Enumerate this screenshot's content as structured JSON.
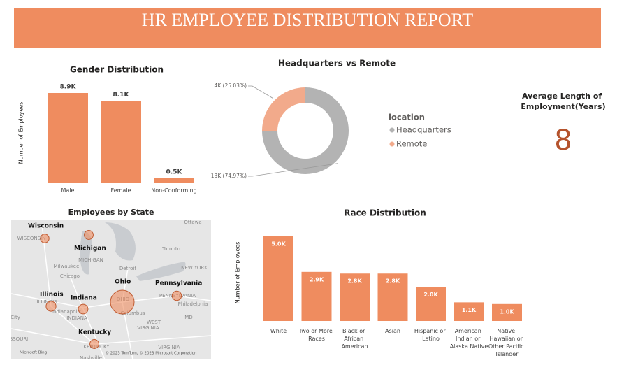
{
  "header": {
    "title": "HR EMPLOYEE DISTRIBUTION REPORT"
  },
  "kpi": {
    "title": "Average Length of Employment(Years)",
    "value": 8
  },
  "chart_data": [
    {
      "type": "bar",
      "title": "Gender Distribution",
      "ylabel": "Number of Employees",
      "categories": [
        "Male",
        "Female",
        "Non-Conforming"
      ],
      "values": [
        8900,
        8100,
        500
      ],
      "value_labels": [
        "8.9K",
        "8.1K",
        "0.5K"
      ],
      "color": "#ef8c5f"
    },
    {
      "type": "donut",
      "title": "Headquarters vs Remote",
      "legend_title": "location",
      "categories": [
        "Headquarters",
        "Remote"
      ],
      "values": [
        74.97,
        25.03
      ],
      "value_labels": [
        "13K (74.97%)",
        "4K (25.03%)"
      ],
      "colors": [
        "#b3b3b3",
        "#f2aa8b"
      ]
    },
    {
      "type": "map",
      "title": "Employees by State",
      "categories": [
        "Wisconsin",
        "Michigan",
        "Ohio",
        "Pennsylvania",
        "Illinois",
        "Indiana",
        "Kentucky"
      ],
      "values": [
        400,
        500,
        14000,
        600,
        800,
        700,
        500
      ],
      "color": "#ef8c5f",
      "basemap_labels": [
        "Ottawa",
        "WISCONSIN",
        "Toronto",
        "MICHIGAN",
        "Milwaukee",
        "Detroit",
        "NEW YORK",
        "Chicago",
        "ILLINOIS",
        "Indianapolis",
        "INDIANA",
        "OHIO",
        "Columbus",
        "PENNSYLVANIA",
        "Philadelphia",
        "WEST",
        "VIRGINIA",
        "MD",
        "City",
        "ISSOURI",
        "KENTUCKY",
        "VIRGINIA",
        "Nashville"
      ],
      "credits": [
        "Microsoft Bing",
        "© 2023 TomTom, © 2023 Microsoft Corporation"
      ]
    },
    {
      "type": "bar",
      "title": "Race Distribution",
      "ylabel": "Number of Employees",
      "labels_inside": true,
      "categories": [
        "White",
        "Two or More Races",
        "Black or African American",
        "Asian",
        "Hispanic or Latino",
        "American Indian or Alaska Native",
        "Native Hawaiian or Other Pacific Islander"
      ],
      "values": [
        5000,
        2900,
        2800,
        2800,
        2000,
        1100,
        1000
      ],
      "value_labels": [
        "5.0K",
        "2.9K",
        "2.8K",
        "2.8K",
        "2.0K",
        "1.1K",
        "1.0K"
      ],
      "color": "#ef8c5f"
    }
  ]
}
